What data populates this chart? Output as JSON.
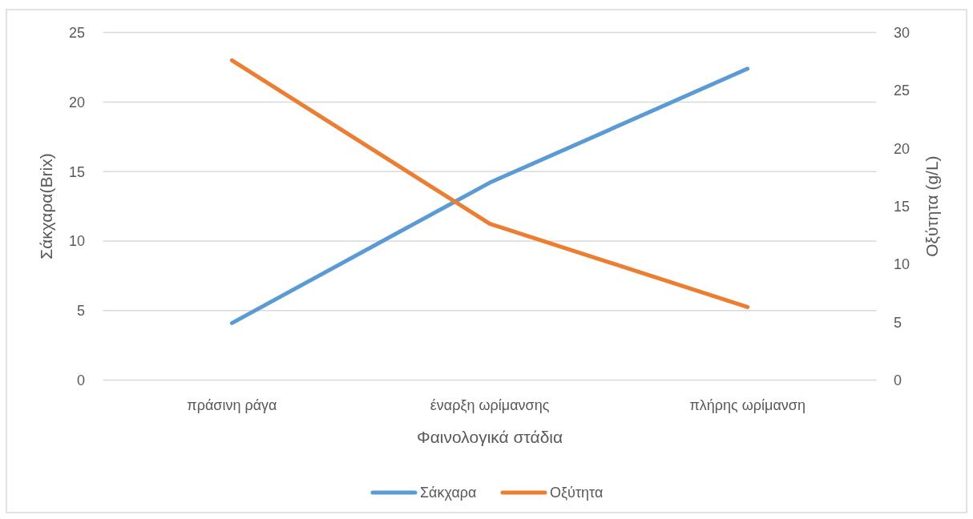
{
  "chart_data": {
    "type": "line",
    "xlabel": "Φαινολογικά στάδια",
    "ylabel": "Σάκχαρα(Brix)",
    "y2label": "Οξύτητα (g/L)",
    "categories": [
      "πράσινη ράγα",
      "έναρξη ωρίμανσης",
      "πλήρης ωρίμανση"
    ],
    "series": [
      {
        "name": "Σάκχαρα",
        "color": "#5b9bd5",
        "values": [
          4.1,
          14.2,
          22.4
        ]
      },
      {
        "name": "Οξύτητα",
        "color": "#ed7d31",
        "values": [
          27.6,
          13.5,
          6.3
        ],
        "axis": "y2"
      }
    ],
    "ylim": [
      0,
      25
    ],
    "yticks": [
      0,
      5,
      10,
      15,
      20,
      25
    ],
    "y2lim": [
      0,
      30
    ],
    "y2ticks": [
      0,
      5,
      10,
      15,
      20,
      25,
      30
    ],
    "grid": "y",
    "legend": "bottom",
    "line_style": "solid"
  }
}
